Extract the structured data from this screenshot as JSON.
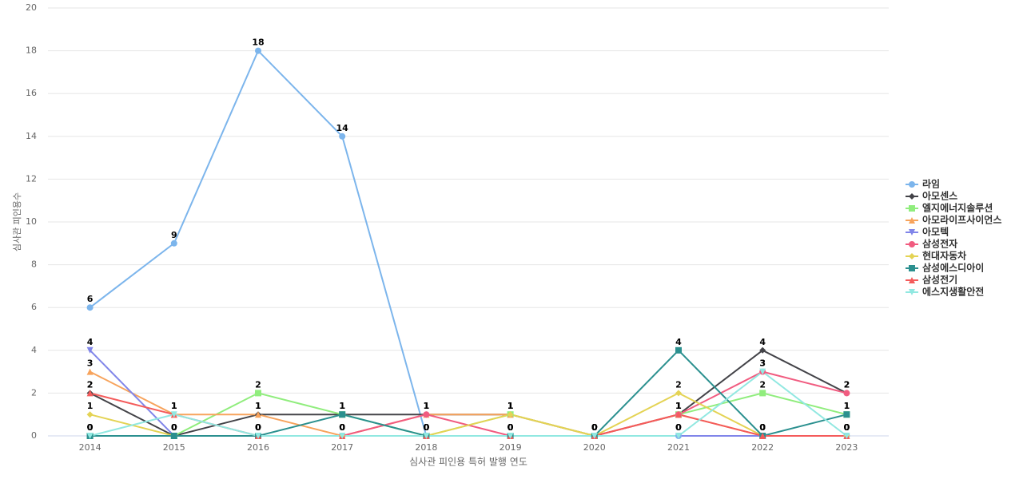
{
  "chart_data": {
    "type": "line",
    "y_axis_label": "심사관 피인용수",
    "x_axis_label": "심사관 피인용 특허 발행 연도",
    "categories": [
      "2014",
      "2015",
      "2016",
      "2017",
      "2018",
      "2019",
      "2020",
      "2021",
      "2022",
      "2023"
    ],
    "series": [
      {
        "name": "라임",
        "color": "#7cb5ec",
        "marker": "circle",
        "values": [
          6,
          9,
          18,
          14,
          0,
          0,
          0,
          0,
          0,
          0
        ]
      },
      {
        "name": "아모센스",
        "color": "#434348",
        "marker": "diamond",
        "values": [
          2,
          0,
          1,
          1,
          1,
          1,
          0,
          1,
          4,
          2
        ]
      },
      {
        "name": "엘지에너지솔루션",
        "color": "#90ed7d",
        "marker": "square",
        "values": [
          0,
          0,
          2,
          1,
          0,
          1,
          0,
          1,
          2,
          1
        ]
      },
      {
        "name": "아모라이프사이언스",
        "color": "#f7a35c",
        "marker": "triangle",
        "values": [
          3,
          1,
          1,
          0,
          1,
          1,
          0,
          1,
          0,
          0
        ]
      },
      {
        "name": "아모텍",
        "color": "#8085e9",
        "marker": "triangle-down",
        "values": [
          4,
          0,
          0,
          0,
          0,
          0,
          0,
          0,
          0,
          0
        ]
      },
      {
        "name": "삼성전자",
        "color": "#f15c80",
        "marker": "circle",
        "values": [
          0,
          0,
          0,
          0,
          1,
          0,
          0,
          1,
          3,
          2
        ]
      },
      {
        "name": "현대자동차",
        "color": "#e4d354",
        "marker": "diamond",
        "values": [
          1,
          0,
          0,
          0,
          0,
          1,
          0,
          2,
          0,
          0
        ]
      },
      {
        "name": "삼성에스디아이",
        "color": "#2b908f",
        "marker": "square",
        "values": [
          0,
          0,
          0,
          1,
          0,
          0,
          0,
          4,
          0,
          1
        ]
      },
      {
        "name": "삼성전기",
        "color": "#f45b5b",
        "marker": "triangle",
        "values": [
          2,
          1,
          0,
          0,
          0,
          0,
          0,
          1,
          0,
          0
        ]
      },
      {
        "name": "에스지생활안전",
        "color": "#91e8e1",
        "marker": "triangle-down",
        "values": [
          0,
          1,
          0,
          0,
          0,
          0,
          0,
          0,
          3,
          0
        ]
      }
    ],
    "ylim": [
      0,
      20
    ],
    "yticks": [
      0,
      2,
      4,
      6,
      8,
      10,
      12,
      14,
      16,
      18,
      20
    ],
    "grid": true
  }
}
